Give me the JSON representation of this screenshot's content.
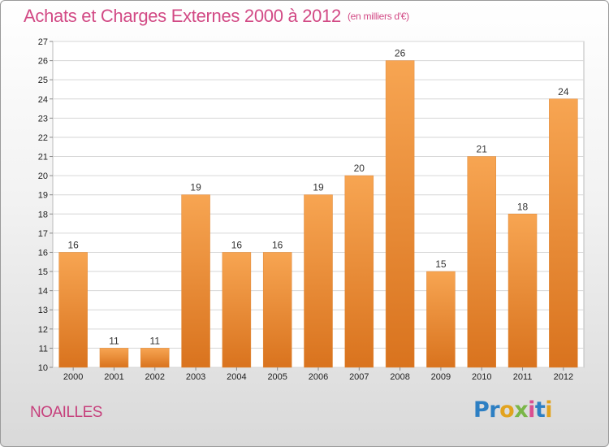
{
  "header": {
    "title": "Achats et Charges Externes 2000 à 2012",
    "unit": "(en milliers d'€)"
  },
  "footer": {
    "commune": "NOAILLES",
    "brand": "Proxiti",
    "brand_letters": [
      {
        "ch": "P",
        "color": "#2d7fc3"
      },
      {
        "ch": "r",
        "color": "#2d7fc3"
      },
      {
        "ch": "o",
        "color": "#e2a31e"
      },
      {
        "ch": "x",
        "color": "#7ab648"
      },
      {
        "ch": "i",
        "color": "#d94f91"
      },
      {
        "ch": "t",
        "color": "#2d7fc3"
      },
      {
        "ch": "i",
        "color": "#e2a31e"
      }
    ]
  },
  "chart_data": {
    "type": "bar",
    "title": "Achats et Charges Externes 2000 à 2012",
    "subtitle": "(en milliers d'€)",
    "categories": [
      "2000",
      "2001",
      "2002",
      "2003",
      "2004",
      "2005",
      "2006",
      "2007",
      "2008",
      "2009",
      "2010",
      "2011",
      "2012"
    ],
    "values": [
      16,
      11,
      11,
      19,
      16,
      16,
      19,
      20,
      26,
      15,
      21,
      18,
      24
    ],
    "ylim": [
      10,
      27
    ],
    "yticks": [
      10,
      11,
      12,
      13,
      14,
      15,
      16,
      17,
      18,
      19,
      20,
      21,
      22,
      23,
      24,
      25,
      26,
      27
    ],
    "grid": true,
    "bar_color_top": "#f7a552",
    "bar_color_bottom": "#d9731e",
    "xlabel": "",
    "ylabel": ""
  }
}
